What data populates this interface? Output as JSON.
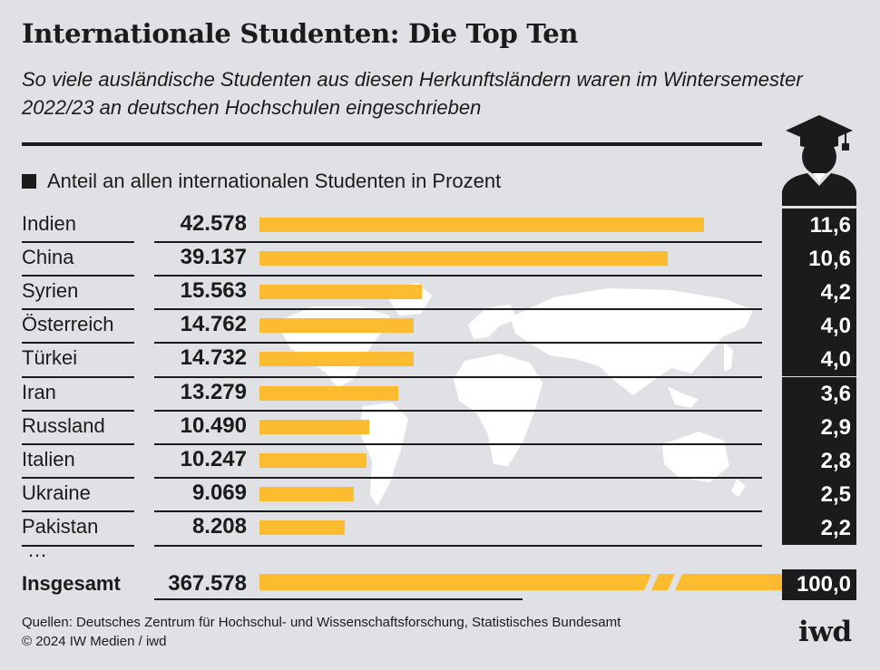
{
  "header": {
    "title": "Internationale Studenten: Die Top Ten",
    "subtitle": "So viele ausländische Studenten aus diesen Herkunftsländern waren im Wintersemester 2022/23 an deutschen Hochschulen eingeschrieben"
  },
  "legend": {
    "label": "Anteil an allen internationalen Studenten in Prozent"
  },
  "chart_data": {
    "type": "bar",
    "title": "Internationale Studenten: Die Top Ten",
    "categories": [
      "Indien",
      "China",
      "Syrien",
      "Österreich",
      "Türkei",
      "Iran",
      "Russland",
      "Italien",
      "Ukraine",
      "Pakistan"
    ],
    "values": [
      42578,
      39137,
      15563,
      14762,
      14732,
      13279,
      10490,
      10247,
      9069,
      8208
    ],
    "value_labels": [
      "42.578",
      "39.137",
      "15.563",
      "14.762",
      "14.732",
      "13.279",
      "10.490",
      "10.247",
      "9.069",
      "8.208"
    ],
    "share_labels": [
      "11,6",
      "10,6",
      "4,2",
      "4,0",
      "4,0",
      "3,6",
      "2,9",
      "2,8",
      "2,5",
      "2,2"
    ],
    "ellipsis": "…",
    "total": {
      "label": "Insgesamt",
      "value": 367578,
      "value_label": "367.578",
      "share_label": "100,0"
    },
    "bar_color": "#fdbb30",
    "share_box_color": "#1b1b1b"
  },
  "footer": {
    "source": "Quellen: Deutsches Zentrum für Hochschul- und Wissenschaftsforschung, Statistisches Bundesamt",
    "copyright": "© 2024 IW Medien / iwd",
    "logo": "iwd"
  },
  "colors": {
    "background": "#dfe1e4",
    "text": "#1b1b1b",
    "map": "#ffffff"
  }
}
